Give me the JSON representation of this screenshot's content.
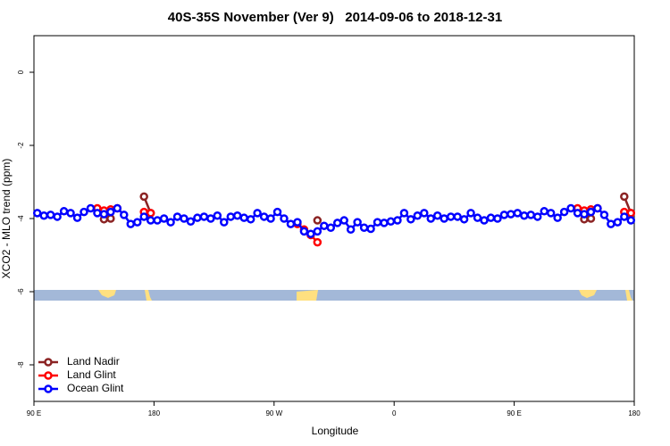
{
  "chart_data": {
    "type": "line",
    "title": "40S-35S November (Ver 9)   2014-09-06 to 2018-12-31",
    "xlabel": "Longitude",
    "ylabel": "XCO2 - MLO trend (ppm)",
    "x": [
      92.5,
      97.5,
      102.5,
      107.5,
      112.5,
      117.5,
      122.5,
      127.5,
      132.5,
      137.5,
      142.5,
      147.5,
      152.5,
      157.5,
      162.5,
      167.5,
      172.5,
      177.5,
      182.5,
      187.5,
      192.5,
      197.5,
      202.5,
      207.5,
      212.5,
      217.5,
      222.5,
      227.5,
      232.5,
      237.5,
      242.5,
      247.5,
      252.5,
      257.5,
      262.5,
      267.5,
      272.5,
      277.5,
      282.5,
      287.5,
      292.5,
      297.5,
      302.5,
      307.5,
      312.5,
      317.5,
      322.5,
      327.5,
      332.5,
      337.5,
      342.5,
      347.5,
      352.5,
      357.5,
      362.5,
      367.5,
      372.5,
      377.5,
      382.5,
      387.5,
      392.5,
      397.5,
      402.5,
      407.5,
      412.5,
      417.5,
      422.5,
      427.5,
      432.5,
      437.5,
      442.5,
      447.5,
      452.5,
      457.5,
      462.5,
      467.5,
      472.5,
      477.5,
      482.5,
      487.5,
      492.5,
      497.5,
      502.5,
      507.5,
      512.5,
      517.5,
      522.5,
      527.5,
      532.5,
      537.5
    ],
    "series": [
      {
        "name": "Land Nadir",
        "color": "#8b2323",
        "values": [
          null,
          null,
          null,
          null,
          null,
          null,
          null,
          null,
          null,
          -3.75,
          -4.02,
          -4.0,
          null,
          null,
          null,
          null,
          -3.4,
          -3.85,
          null,
          null,
          null,
          null,
          null,
          null,
          null,
          null,
          null,
          null,
          null,
          null,
          null,
          null,
          null,
          null,
          null,
          null,
          null,
          null,
          null,
          null,
          null,
          null,
          -4.05,
          null,
          null,
          null,
          null,
          null,
          null,
          null,
          null,
          null,
          null,
          null,
          null,
          null,
          null,
          null,
          null,
          null,
          null,
          null,
          null,
          null,
          null,
          null,
          null,
          null,
          null,
          null,
          null,
          null,
          null,
          null,
          null,
          null,
          null,
          null,
          null,
          null,
          null,
          -3.75,
          -4.02,
          -4.0,
          null,
          null,
          null,
          null,
          -3.4,
          -3.85
        ]
      },
      {
        "name": "Land Glint",
        "color": "#ff0000",
        "values": [
          null,
          null,
          null,
          null,
          null,
          null,
          null,
          null,
          null,
          -3.72,
          -3.78,
          -3.75,
          -3.72,
          null,
          null,
          null,
          -3.82,
          -3.85,
          null,
          null,
          null,
          null,
          null,
          null,
          null,
          null,
          null,
          null,
          null,
          null,
          null,
          null,
          null,
          null,
          null,
          null,
          null,
          null,
          null,
          -4.15,
          -4.3,
          -4.45,
          -4.65,
          null,
          null,
          null,
          null,
          null,
          null,
          null,
          null,
          null,
          null,
          null,
          null,
          null,
          null,
          null,
          null,
          null,
          null,
          null,
          null,
          null,
          null,
          null,
          null,
          null,
          null,
          null,
          null,
          null,
          null,
          null,
          null,
          null,
          null,
          null,
          null,
          null,
          null,
          -3.72,
          -3.78,
          -3.75,
          -3.72,
          null,
          null,
          null,
          -3.82,
          -3.85
        ]
      },
      {
        "name": "Ocean Glint",
        "color": "#0000ff",
        "values": [
          -3.85,
          -3.92,
          -3.9,
          -3.95,
          -3.8,
          -3.85,
          -3.98,
          -3.82,
          -3.72,
          -3.85,
          -3.88,
          -3.82,
          -3.72,
          -3.9,
          -4.15,
          -4.1,
          -3.95,
          -4.05,
          -4.05,
          -4.0,
          -4.1,
          -3.95,
          -4.0,
          -4.08,
          -3.98,
          -3.95,
          -4.0,
          -3.92,
          -4.1,
          -3.95,
          -3.92,
          -3.98,
          -4.02,
          -3.85,
          -3.95,
          -4.0,
          -3.82,
          -4.0,
          -4.15,
          -4.1,
          -4.35,
          -4.42,
          -4.35,
          -4.2,
          -4.25,
          -4.12,
          -4.05,
          -4.3,
          -4.1,
          -4.25,
          -4.28,
          -4.1,
          -4.12,
          -4.08,
          -4.05,
          -3.85,
          -4.02,
          -3.92,
          -3.85,
          -4.0,
          -3.92,
          -4.0,
          -3.95,
          -3.95,
          -4.02,
          -3.85,
          -3.98,
          -4.05,
          -3.98,
          -4.0,
          -3.9,
          -3.88,
          -3.85,
          -3.92,
          -3.9,
          -3.95,
          -3.8,
          -3.85,
          -3.98,
          -3.82,
          -3.72,
          -3.85,
          -3.88,
          -3.82,
          -3.72,
          -3.9,
          -4.15,
          -4.1,
          -3.95,
          -4.05
        ]
      }
    ],
    "xlim": [
      90,
      540
    ],
    "xticks": [
      {
        "value": 90,
        "label": "90 E"
      },
      180,
      {
        "value": 270,
        "label": "90 W"
      },
      {
        "value": 360,
        "label": "0"
      },
      {
        "value": 450,
        "label": "90 E"
      },
      {
        "value": 540,
        "label": "180"
      }
    ],
    "ylim": [
      -9,
      1
    ],
    "yticks": [
      -8,
      -6,
      -4,
      -2,
      0
    ],
    "legend": "bottom-left"
  }
}
